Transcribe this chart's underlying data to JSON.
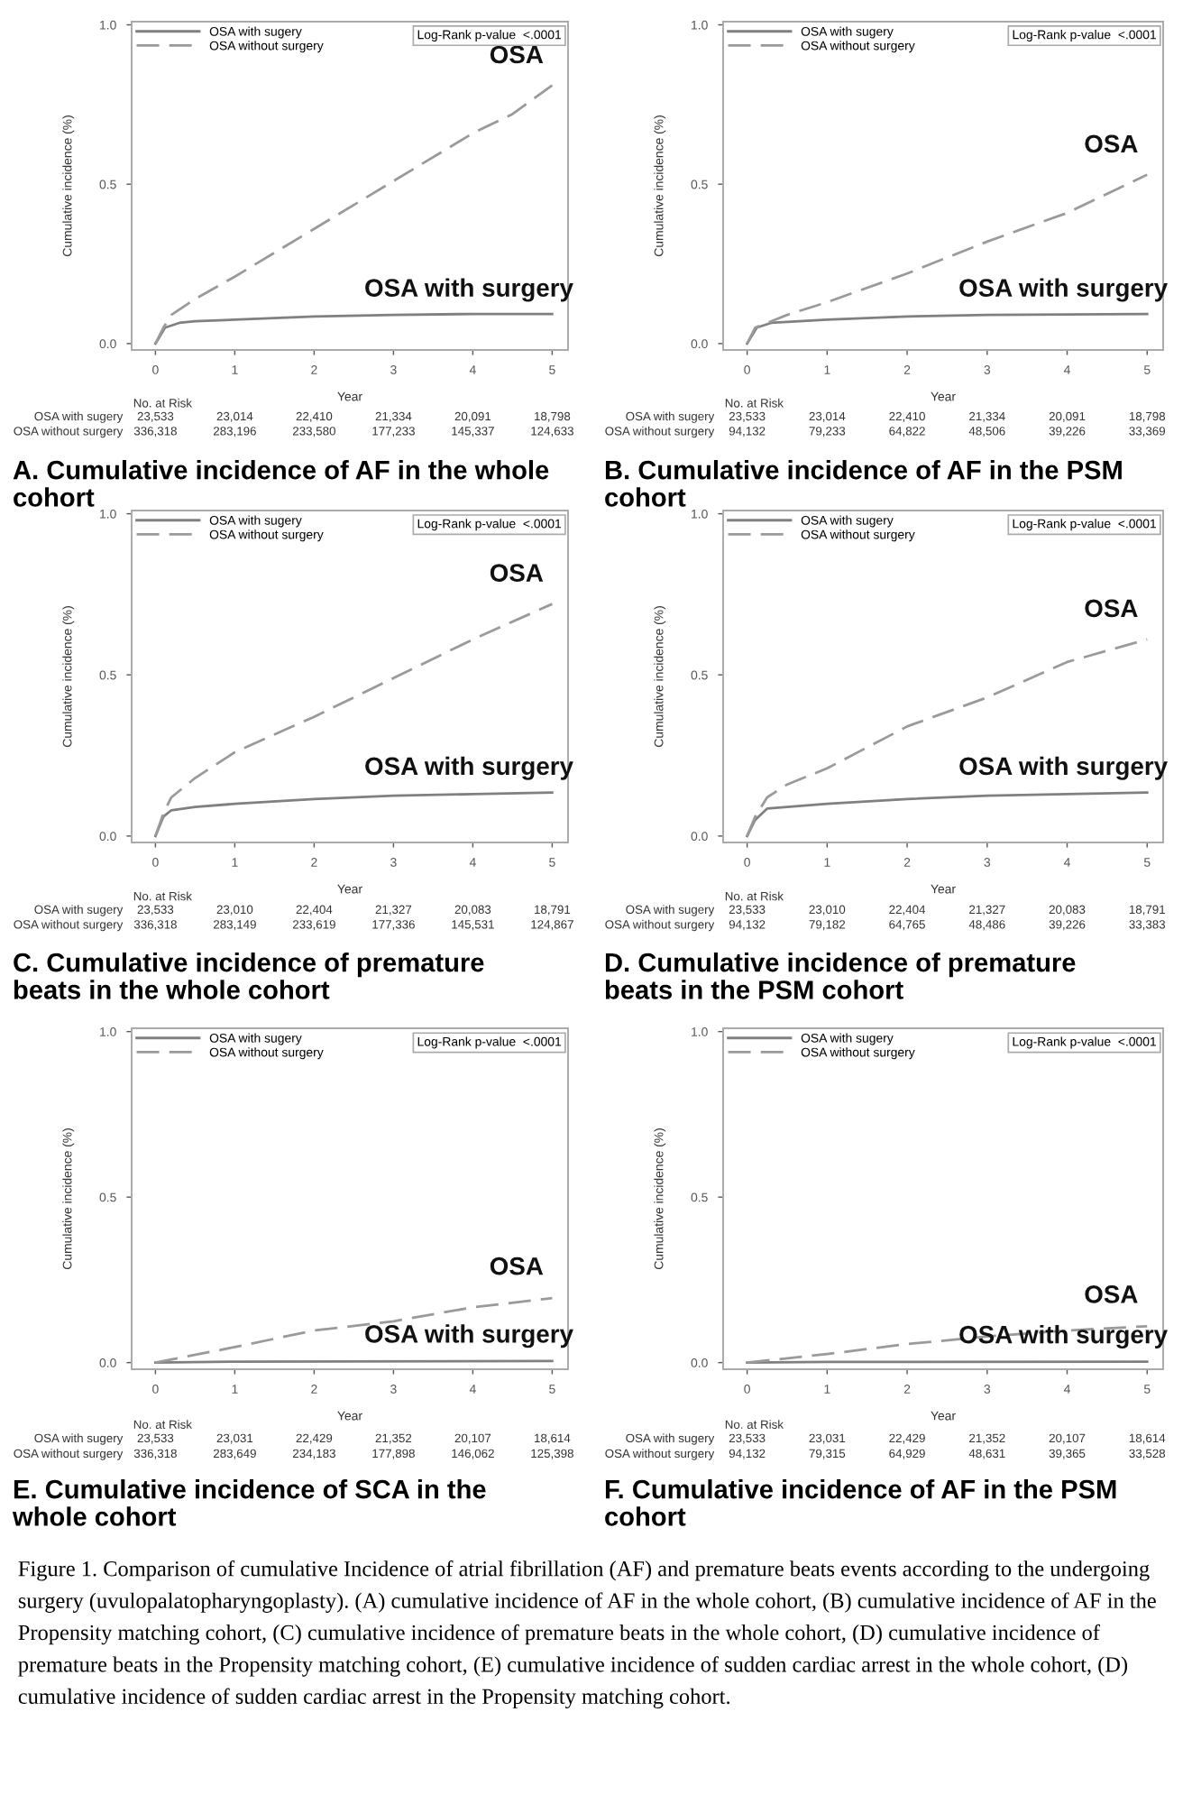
{
  "chart_data": [
    {
      "type": "line",
      "title": "A. Cumulative incidence of AF in the whole cohort",
      "xlabel": "Year",
      "ylabel": "Cumulative incidence (%)",
      "xlim": [
        -0.3,
        5.2
      ],
      "ylim": [
        -0.02,
        1.01
      ],
      "xticks": [
        0,
        1,
        2,
        3,
        4,
        5
      ],
      "yticks": [
        {
          "value": 0,
          "label": "0.0"
        },
        {
          "value": 0.5,
          "label": "0.5"
        },
        {
          "value": 1,
          "label": "1.0"
        }
      ],
      "legend": "top left",
      "annotations": [
        "Log-Rank p-value  <.0001",
        "No. at Risk",
        "OSA with sugery",
        "OSA without surgery",
        "23,533",
        "23,014",
        "22,410",
        "21,334",
        "20,091",
        "18,798",
        "336,318",
        "283,196",
        "233,580",
        "177,233",
        "145,337",
        "124,633",
        "OSA",
        "OSA with surgery"
      ],
      "series": [
        {
          "name": "OSA with sugery",
          "color": "#808080",
          "line_style": "solid",
          "x": [
            0,
            0.05,
            0.12,
            0.3,
            0.5,
            1,
            2,
            3,
            4,
            5
          ],
          "values": [
            0,
            0.02,
            0.05,
            0.065,
            0.07,
            0.075,
            0.085,
            0.09,
            0.093,
            0.093
          ]
        },
        {
          "name": "OSA without surgery",
          "color": "#9a9a9a",
          "line_style": "dashed",
          "x": [
            0,
            0.1,
            0.2,
            0.5,
            1,
            2,
            3,
            4,
            4.5,
            5
          ],
          "values": [
            0,
            0.05,
            0.09,
            0.14,
            0.21,
            0.36,
            0.51,
            0.66,
            0.72,
            0.81
          ]
        }
      ]
    },
    {
      "type": "line",
      "title": "B. Cumulative incidence of AF in the PSM cohort",
      "xlabel": "Year",
      "ylabel": "Cumulative incidence (%)",
      "xlim": [
        -0.3,
        5.2
      ],
      "ylim": [
        -0.02,
        1.01
      ],
      "xticks": [
        0,
        1,
        2,
        3,
        4,
        5
      ],
      "yticks": [
        {
          "value": 0,
          "label": "0.0"
        },
        {
          "value": 0.5,
          "label": "0.5"
        },
        {
          "value": 1,
          "label": "1.0"
        }
      ],
      "legend": "top left",
      "annotations": [
        "Log-Rank p-value  <.0001",
        "No. at Risk",
        "OSA with sugery",
        "OSA without surgery",
        "23,533",
        "23,014",
        "22,410",
        "21,334",
        "20,091",
        "18,798",
        "94,132",
        "79,233",
        "64,822",
        "48,506",
        "39,226",
        "33,369",
        "OSA",
        "OSA with surgery"
      ],
      "series": [
        {
          "name": "OSA with sugery",
          "color": "#808080",
          "line_style": "solid",
          "x": [
            0,
            0.12,
            0.3,
            1,
            2,
            3,
            5
          ],
          "values": [
            0,
            0.05,
            0.065,
            0.075,
            0.085,
            0.09,
            0.093
          ]
        },
        {
          "name": "OSA without surgery",
          "color": "#9a9a9a",
          "line_style": "dashed",
          "x": [
            0,
            0.1,
            0.2,
            0.5,
            1,
            2,
            3,
            4,
            5
          ],
          "values": [
            0,
            0.05,
            0.06,
            0.09,
            0.13,
            0.22,
            0.32,
            0.41,
            0.53
          ]
        }
      ]
    },
    {
      "type": "line",
      "title": "C. Cumulative incidence of premature beats in the whole cohort",
      "xlabel": "Year",
      "ylabel": "Cumulative incidence (%)",
      "xlim": [
        -0.3,
        5.2
      ],
      "ylim": [
        -0.02,
        1.01
      ],
      "xticks": [
        0,
        1,
        2,
        3,
        4,
        5
      ],
      "yticks": [
        {
          "value": 0,
          "label": "0.0"
        },
        {
          "value": 0.5,
          "label": "0.5"
        },
        {
          "value": 1,
          "label": "1.0"
        }
      ],
      "legend": "top left",
      "annotations": [
        "Log-Rank p-value  <.0001",
        "No. at Risk",
        "OSA with sugery",
        "OSA without surgery",
        "23,533",
        "23,010",
        "22,404",
        "21,327",
        "20,083",
        "18,791",
        "336,318",
        "283,149",
        "233,619",
        "177,336",
        "145,531",
        "124,867",
        "OSA",
        "OSA with surgery"
      ],
      "series": [
        {
          "name": "OSA with sugery",
          "color": "#808080",
          "line_style": "solid",
          "x": [
            0,
            0.1,
            0.2,
            0.5,
            1,
            2,
            3,
            4,
            5
          ],
          "values": [
            0,
            0.06,
            0.08,
            0.09,
            0.1,
            0.115,
            0.125,
            0.13,
            0.135
          ]
        },
        {
          "name": "OSA without surgery",
          "color": "#9a9a9a",
          "line_style": "dashed",
          "x": [
            0,
            0.1,
            0.2,
            0.5,
            1,
            2,
            3,
            4,
            5
          ],
          "values": [
            0,
            0.07,
            0.12,
            0.18,
            0.26,
            0.37,
            0.49,
            0.61,
            0.72
          ]
        }
      ]
    },
    {
      "type": "line",
      "title": "D. Cumulative incidence of premature beats in the PSM cohort",
      "xlabel": "Year",
      "ylabel": "Cumulative incidence (%)",
      "xlim": [
        -0.3,
        5.2
      ],
      "ylim": [
        -0.02,
        1.01
      ],
      "xticks": [
        0,
        1,
        2,
        3,
        4,
        5
      ],
      "yticks": [
        {
          "value": 0,
          "label": "0.0"
        },
        {
          "value": 0.5,
          "label": "0.5"
        },
        {
          "value": 1,
          "label": "1.0"
        }
      ],
      "legend": "top left",
      "annotations": [
        "Log-Rank p-value  <.0001",
        "No. at Risk",
        "OSA with sugery",
        "OSA without surgery",
        "23,533",
        "23,010",
        "22,404",
        "21,327",
        "20,083",
        "18,791",
        "94,132",
        "79,182",
        "64,765",
        "48,486",
        "39,226",
        "33,383",
        "OSA",
        "OSA with surgery"
      ],
      "series": [
        {
          "name": "OSA with sugery",
          "color": "#808080",
          "line_style": "solid",
          "x": [
            0,
            0.1,
            0.25,
            1,
            2,
            3,
            5
          ],
          "values": [
            0,
            0.05,
            0.085,
            0.1,
            0.115,
            0.125,
            0.135
          ]
        },
        {
          "name": "OSA without surgery",
          "color": "#9a9a9a",
          "line_style": "dashed",
          "x": [
            0,
            0.1,
            0.25,
            0.5,
            1,
            2,
            3,
            4,
            5
          ],
          "values": [
            0,
            0.06,
            0.12,
            0.16,
            0.21,
            0.34,
            0.43,
            0.54,
            0.61
          ]
        }
      ]
    },
    {
      "type": "line",
      "title": "E. Cumulative incidence of SCA in the whole cohort",
      "xlabel": "Year",
      "ylabel": "Cumulative incidence (%)",
      "xlim": [
        -0.3,
        5.2
      ],
      "ylim": [
        -0.02,
        1.01
      ],
      "xticks": [
        0,
        1,
        2,
        3,
        4,
        5
      ],
      "yticks": [
        {
          "value": 0,
          "label": "0.0"
        },
        {
          "value": 0.5,
          "label": "0.5"
        },
        {
          "value": 1,
          "label": "1.0"
        }
      ],
      "legend": "top left",
      "annotations": [
        "Log-Rank p-value  <.0001",
        "No. at Risk",
        "OSA with sugery",
        "OSA without surgery",
        "23,533",
        "23,031",
        "22,429",
        "21,352",
        "20,107",
        "18,614",
        "336,318",
        "283,649",
        "234,183",
        "177,898",
        "146,062",
        "125,398",
        "OSA",
        "OSA with surgery"
      ],
      "series": [
        {
          "name": "OSA with sugery",
          "color": "#808080",
          "line_style": "solid",
          "x": [
            0,
            1,
            5
          ],
          "values": [
            0,
            0.003,
            0.005
          ]
        },
        {
          "name": "OSA without surgery",
          "color": "#9a9a9a",
          "line_style": "dashed",
          "x": [
            0,
            1,
            2,
            3,
            4,
            5
          ],
          "values": [
            0,
            0.047,
            0.097,
            0.125,
            0.167,
            0.195
          ]
        }
      ]
    },
    {
      "type": "line",
      "title": "F. Cumulative incidence of AF in the PSM cohort",
      "xlabel": "Year",
      "ylabel": "Cumulative incidence (%)",
      "xlim": [
        -0.3,
        5.2
      ],
      "ylim": [
        -0.02,
        1.01
      ],
      "xticks": [
        0,
        1,
        2,
        3,
        4,
        5
      ],
      "yticks": [
        {
          "value": 0,
          "label": "0.0"
        },
        {
          "value": 0.5,
          "label": "0.5"
        },
        {
          "value": 1,
          "label": "1.0"
        }
      ],
      "legend": "top left",
      "annotations": [
        "Log-Rank p-value  <.0001",
        "No. at Risk",
        "OSA with sugery",
        "OSA without surgery",
        "23,533",
        "23,031",
        "22,429",
        "21,352",
        "20,107",
        "18,614",
        "94,132",
        "79,315",
        "64,929",
        "48,631",
        "39,365",
        "33,528",
        "OSA",
        "OSA with surgery",
        "Figure 1. Comparison of cumulative Incidence of atrial fibrillation (AF) and premature beats events according to the undergoing surgery (uvulopalatopharyngoplasty). (A) cumulative incidence of AF in the whole cohort, (B) cumulative incidence of AF in the Propensity matching cohort, (C) cumulative incidence of premature beats in the whole cohort, (D) cumulative incidence of premature beats in the Propensity matching cohort, (E) cumulative incidence of sudden cardiac arrest in the whole cohort, (D) cumulative incidence of sudden cardiac arrest in the Propensity matching cohort."
      ],
      "series": [
        {
          "name": "OSA with sugery",
          "color": "#808080",
          "line_style": "solid",
          "x": [
            0,
            1,
            5
          ],
          "values": [
            0,
            0.002,
            0.003
          ]
        },
        {
          "name": "OSA without surgery",
          "color": "#9a9a9a",
          "line_style": "dashed",
          "x": [
            0,
            1,
            2,
            3,
            4,
            5
          ],
          "values": [
            0,
            0.026,
            0.056,
            0.079,
            0.097,
            0.11
          ]
        }
      ]
    }
  ]
}
